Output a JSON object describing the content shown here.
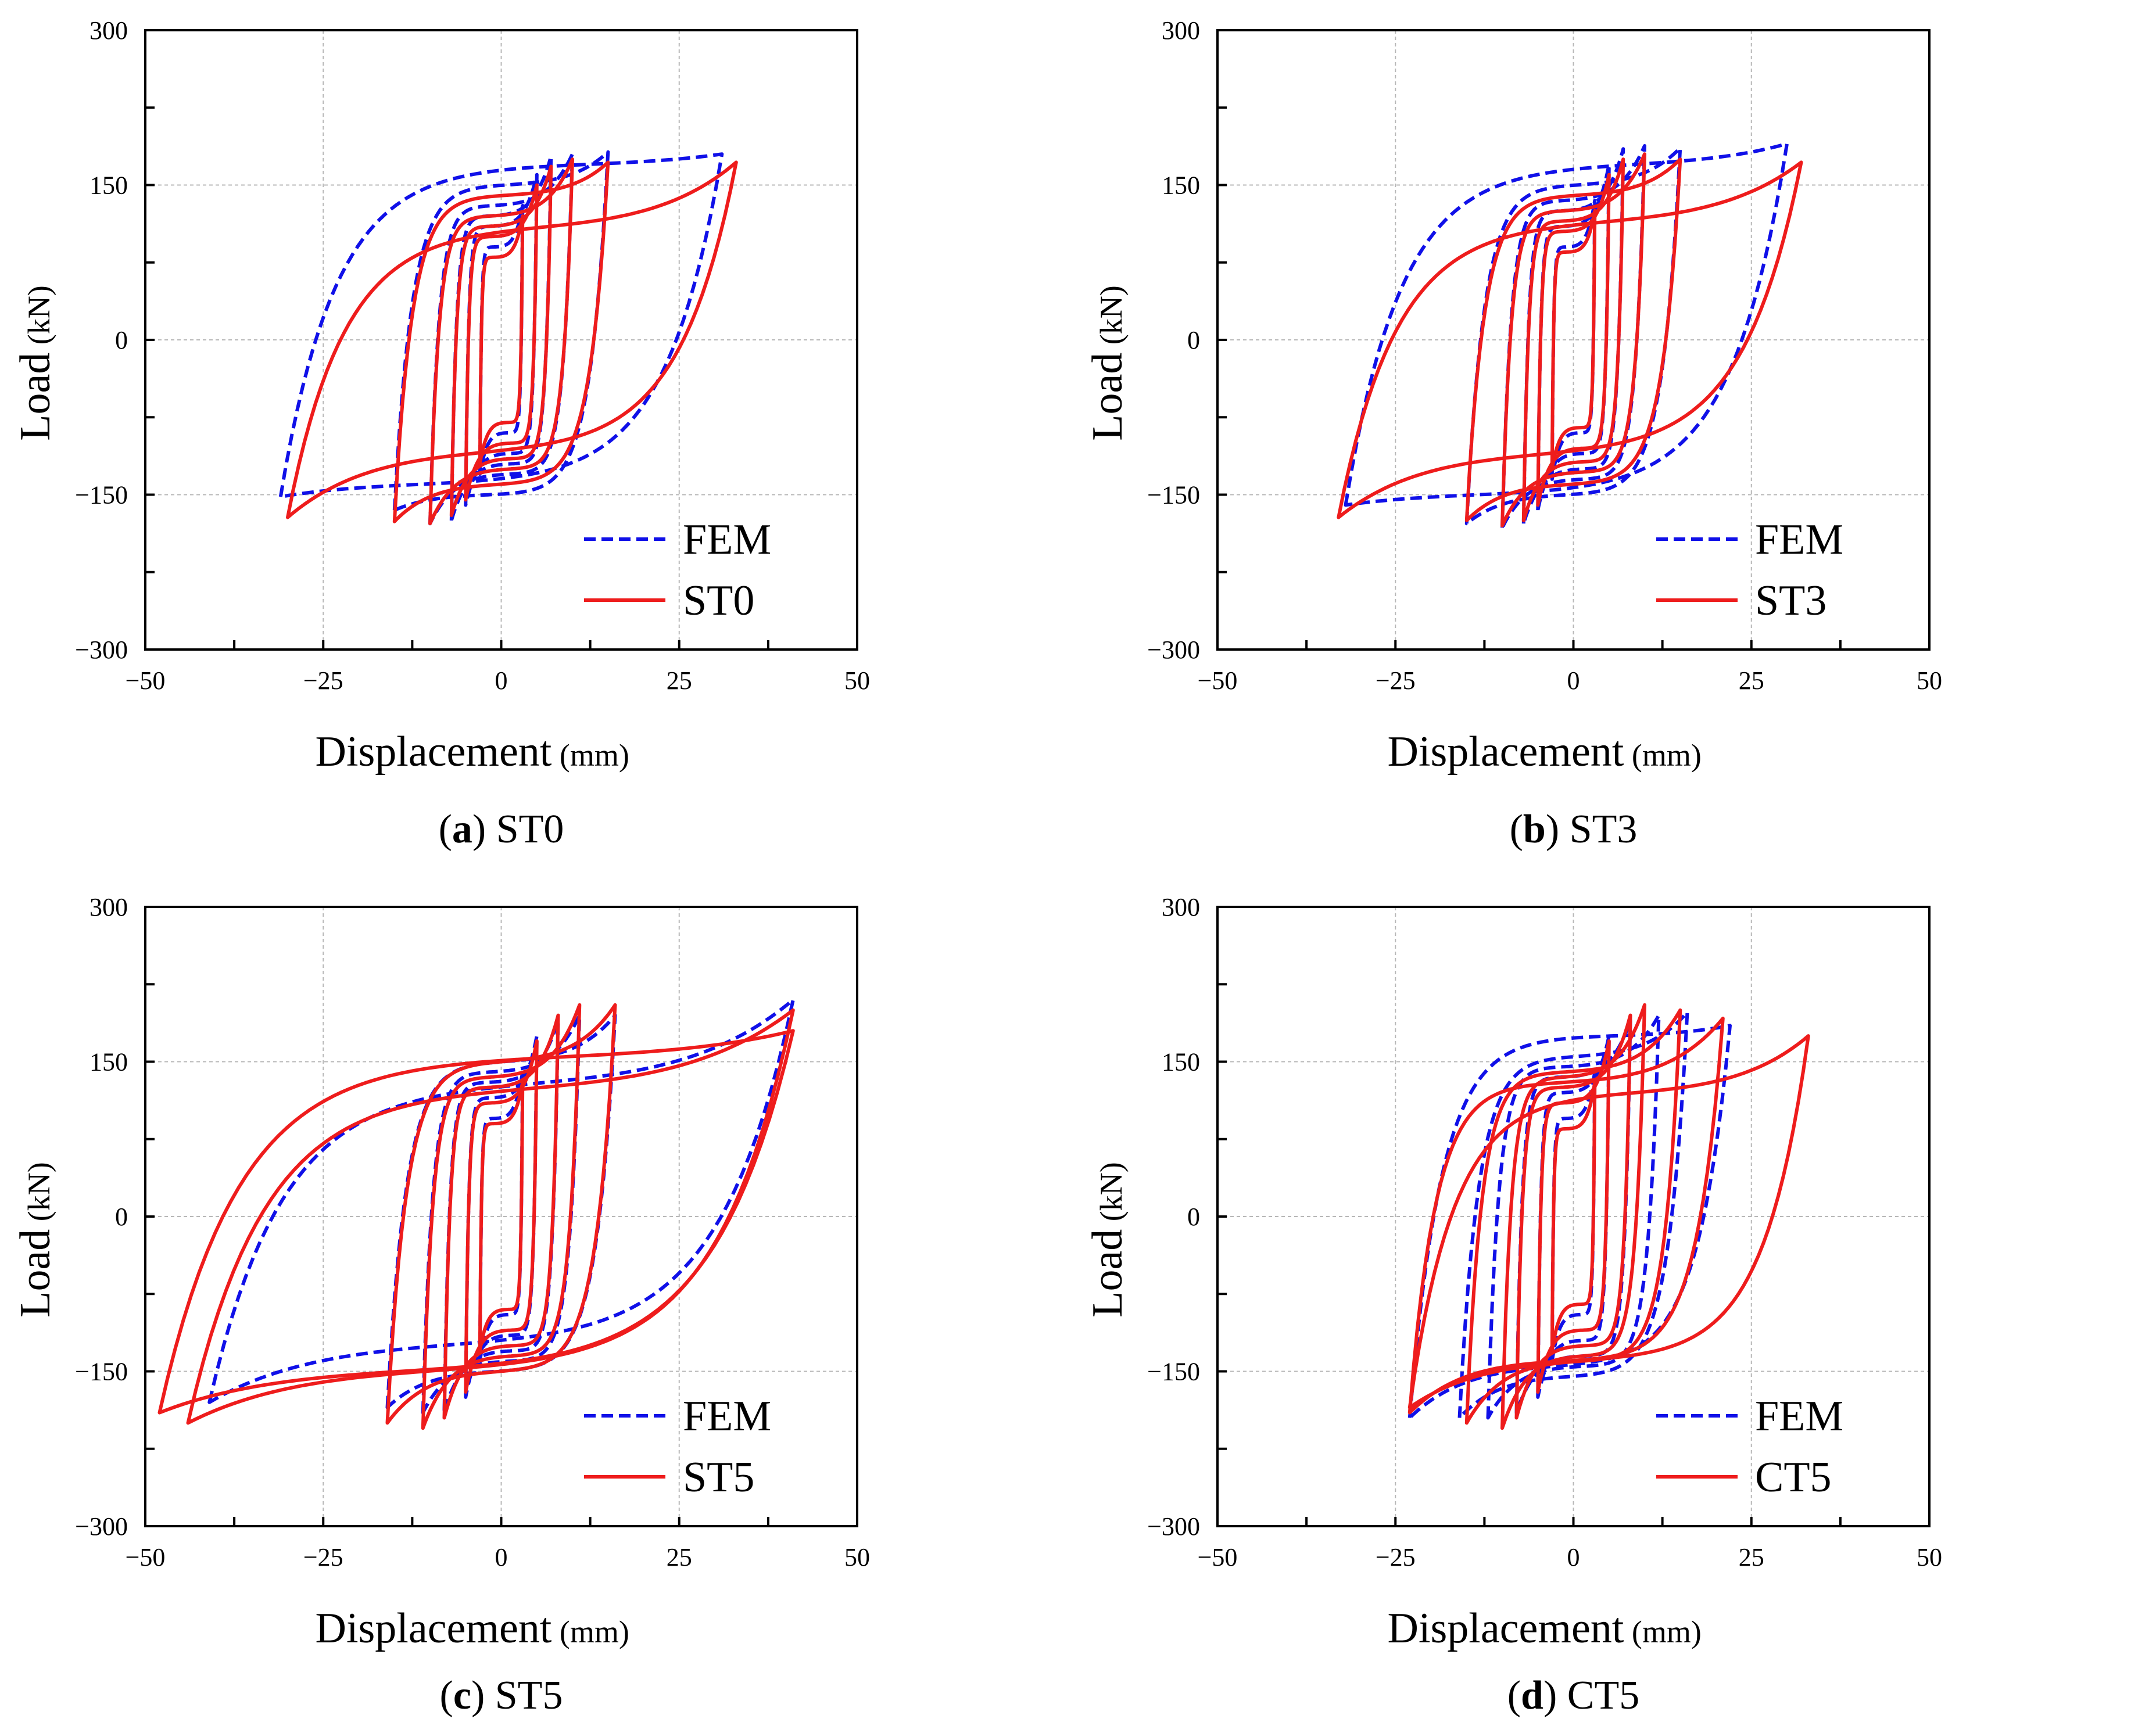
{
  "colors": {
    "fem": "#1010e8",
    "test": "#ee1c1c",
    "grid": "#b8b8b8",
    "axis": "#000000"
  },
  "chart_data": [
    {
      "type": "line",
      "caption": {
        "open": "(",
        "letter": "a",
        "close": ")",
        "text": " ST0"
      },
      "xlabel": "Displacement",
      "xunit": " (mm)",
      "ylabel": "Load",
      "yunit": " (kN)",
      "xlim": [
        -50,
        50
      ],
      "ylim": [
        -300,
        300
      ],
      "xticks": [
        -50,
        -25,
        0,
        25,
        50
      ],
      "yticks": [
        -300,
        -150,
        0,
        150,
        300
      ],
      "xtick_labels": [
        "−50",
        "−25",
        "0",
        "25",
        "50"
      ],
      "ytick_labels": [
        "−300",
        "−150",
        "0",
        "150",
        "300"
      ],
      "grid": true,
      "legend_position": "lower-right",
      "series": [
        {
          "name": "FEM",
          "style": "dashed",
          "color_key": "fem",
          "cycles": [
            {
              "dmax": 3,
              "pmax": 130,
              "dmin": -3,
              "pmin": -130,
              "yp": 90,
              "yn": -90,
              "sp": 28,
              "sn": 28
            },
            {
              "dmax": 5,
              "pmax": 160,
              "dmin": -5,
              "pmin": -160,
              "yp": 110,
              "yn": -110,
              "sp": 24,
              "sn": 24
            },
            {
              "dmax": 7,
              "pmax": 178,
              "dmin": -7,
              "pmin": -175,
              "yp": 120,
              "yn": -120,
              "sp": 20,
              "sn": 20
            },
            {
              "dmax": 10,
              "pmax": 180,
              "dmin": -10,
              "pmin": -178,
              "yp": 130,
              "yn": -130,
              "sp": 16,
              "sn": 16
            },
            {
              "dmax": 15,
              "pmax": 182,
              "dmin": -15,
              "pmin": -165,
              "yp": 150,
              "yn": -150,
              "sp": 12,
              "sn": 12
            },
            {
              "dmax": 31,
              "pmax": 180,
              "dmin": -31,
              "pmin": -152,
              "yp": 170,
              "yn": -140,
              "sp": 8,
              "sn": 8
            }
          ]
        },
        {
          "name": "ST0",
          "style": "solid",
          "color_key": "test",
          "cycles": [
            {
              "dmax": 3,
              "pmax": 120,
              "dmin": -3,
              "pmin": -120,
              "yp": 80,
              "yn": -80,
              "sp": 28,
              "sn": 28
            },
            {
              "dmax": 5,
              "pmax": 150,
              "dmin": -5,
              "pmin": -155,
              "yp": 100,
              "yn": -100,
              "sp": 24,
              "sn": 24
            },
            {
              "dmax": 7,
              "pmax": 168,
              "dmin": -7,
              "pmin": -170,
              "yp": 110,
              "yn": -115,
              "sp": 20,
              "sn": 20
            },
            {
              "dmax": 10,
              "pmax": 175,
              "dmin": -10,
              "pmin": -178,
              "yp": 120,
              "yn": -125,
              "sp": 16,
              "sn": 16
            },
            {
              "dmax": 15,
              "pmax": 172,
              "dmin": -15,
              "pmin": -176,
              "yp": 140,
              "yn": -140,
              "sp": 12,
              "sn": 12
            },
            {
              "dmax": 33,
              "pmax": 172,
              "dmin": -30,
              "pmin": -172,
              "yp": 110,
              "yn": -110,
              "sp": 8,
              "sn": 8
            }
          ]
        }
      ]
    },
    {
      "type": "line",
      "caption": {
        "open": "(",
        "letter": "b",
        "close": ")",
        "text": " ST3"
      },
      "xlabel": "Displacement",
      "xunit": " (mm)",
      "ylabel": "Load",
      "yunit": " (kN)",
      "xlim": [
        -50,
        50
      ],
      "ylim": [
        -300,
        300
      ],
      "xticks": [
        -50,
        -25,
        0,
        25,
        50
      ],
      "yticks": [
        -300,
        -150,
        0,
        150,
        300
      ],
      "xtick_labels": [
        "−50",
        "−25",
        "0",
        "25",
        "50"
      ],
      "ytick_labels": [
        "−300",
        "−150",
        "0",
        "150",
        "300"
      ],
      "grid": true,
      "legend_position": "lower-right",
      "series": [
        {
          "name": "FEM",
          "style": "dashed",
          "color_key": "fem",
          "cycles": [
            {
              "dmax": 3,
              "pmax": 135,
              "dmin": -3,
              "pmin": -135,
              "yp": 90,
              "yn": -90,
              "sp": 28,
              "sn": 28
            },
            {
              "dmax": 5,
              "pmax": 170,
              "dmin": -5,
              "pmin": -165,
              "yp": 110,
              "yn": -110,
              "sp": 24,
              "sn": 24
            },
            {
              "dmax": 7,
              "pmax": 185,
              "dmin": -7,
              "pmin": -178,
              "yp": 125,
              "yn": -125,
              "sp": 20,
              "sn": 20
            },
            {
              "dmax": 10,
              "pmax": 188,
              "dmin": -10,
              "pmin": -182,
              "yp": 135,
              "yn": -135,
              "sp": 16,
              "sn": 16
            },
            {
              "dmax": 15,
              "pmax": 186,
              "dmin": -15,
              "pmin": -178,
              "yp": 150,
              "yn": -150,
              "sp": 12,
              "sn": 12
            },
            {
              "dmax": 30,
              "pmax": 190,
              "dmin": -32,
              "pmin": -160,
              "yp": 170,
              "yn": -150,
              "sp": 8,
              "sn": 8
            }
          ]
        },
        {
          "name": "ST3",
          "style": "solid",
          "color_key": "test",
          "cycles": [
            {
              "dmax": 3,
              "pmax": 125,
              "dmin": -3,
              "pmin": -125,
              "yp": 85,
              "yn": -85,
              "sp": 28,
              "sn": 28
            },
            {
              "dmax": 5,
              "pmax": 160,
              "dmin": -5,
              "pmin": -160,
              "yp": 105,
              "yn": -105,
              "sp": 24,
              "sn": 24
            },
            {
              "dmax": 7,
              "pmax": 175,
              "dmin": -7,
              "pmin": -175,
              "yp": 115,
              "yn": -118,
              "sp": 20,
              "sn": 20
            },
            {
              "dmax": 10,
              "pmax": 180,
              "dmin": -10,
              "pmin": -180,
              "yp": 125,
              "yn": -128,
              "sp": 16,
              "sn": 16
            },
            {
              "dmax": 15,
              "pmax": 175,
              "dmin": -15,
              "pmin": -175,
              "yp": 140,
              "yn": -140,
              "sp": 12,
              "sn": 12
            },
            {
              "dmax": 32,
              "pmax": 172,
              "dmin": -33,
              "pmin": -172,
              "yp": 115,
              "yn": -112,
              "sp": 8,
              "sn": 8
            }
          ]
        }
      ]
    },
    {
      "type": "line",
      "caption": {
        "open": "(",
        "letter": "c",
        "close": ")",
        "text": " ST5"
      },
      "xlabel": "Displacement",
      "xunit": " (mm)",
      "ylabel": "Load",
      "yunit": " (kN)",
      "xlim": [
        -50,
        50
      ],
      "ylim": [
        -300,
        300
      ],
      "xticks": [
        -50,
        -25,
        0,
        25,
        50
      ],
      "yticks": [
        -300,
        -150,
        0,
        150,
        300
      ],
      "xtick_labels": [
        "−50",
        "−25",
        "0",
        "25",
        "50"
      ],
      "ytick_labels": [
        "−300",
        "−150",
        "0",
        "150",
        "300"
      ],
      "grid": true,
      "legend_position": "lower-right",
      "series": [
        {
          "name": "FEM",
          "style": "dashed",
          "color_key": "fem",
          "cycles": [
            {
              "dmax": 3,
              "pmax": 140,
              "dmin": -3,
              "pmin": -140,
              "yp": 95,
              "yn": -95,
              "sp": 28,
              "sn": 28
            },
            {
              "dmax": 5,
              "pmax": 175,
              "dmin": -5,
              "pmin": -175,
              "yp": 115,
              "yn": -115,
              "sp": 24,
              "sn": 24
            },
            {
              "dmax": 8,
              "pmax": 190,
              "dmin": -8,
              "pmin": -188,
              "yp": 130,
              "yn": -130,
              "sp": 20,
              "sn": 20
            },
            {
              "dmax": 11,
              "pmax": 195,
              "dmin": -11,
              "pmin": -190,
              "yp": 140,
              "yn": -140,
              "sp": 16,
              "sn": 16
            },
            {
              "dmax": 16,
              "pmax": 195,
              "dmin": -16,
              "pmin": -185,
              "yp": 150,
              "yn": -150,
              "sp": 12,
              "sn": 12
            },
            {
              "dmax": 41,
              "pmax": 210,
              "dmin": -41,
              "pmin": -180,
              "yp": 130,
              "yn": -125,
              "sp": 8,
              "sn": 8
            }
          ]
        },
        {
          "name": "ST5",
          "style": "solid",
          "color_key": "test",
          "cycles": [
            {
              "dmax": 3,
              "pmax": 130,
              "dmin": -3,
              "pmin": -130,
              "yp": 90,
              "yn": -90,
              "sp": 28,
              "sn": 28
            },
            {
              "dmax": 5,
              "pmax": 170,
              "dmin": -5,
              "pmin": -170,
              "yp": 110,
              "yn": -110,
              "sp": 24,
              "sn": 24
            },
            {
              "dmax": 8,
              "pmax": 195,
              "dmin": -8,
              "pmin": -195,
              "yp": 125,
              "yn": -125,
              "sp": 20,
              "sn": 20
            },
            {
              "dmax": 11,
              "pmax": 205,
              "dmin": -11,
              "pmin": -205,
              "yp": 135,
              "yn": -135,
              "sp": 16,
              "sn": 16
            },
            {
              "dmax": 16,
              "pmax": 205,
              "dmin": -16,
              "pmin": -200,
              "yp": 150,
              "yn": -150,
              "sp": 12,
              "sn": 12
            },
            {
              "dmax": 41,
              "pmax": 200,
              "dmin": -44,
              "pmin": -200,
              "yp": 125,
              "yn": -150,
              "sp": 8,
              "sn": 8
            },
            {
              "dmax": 41,
              "pmax": 180,
              "dmin": -48,
              "pmin": -190,
              "yp": 155,
              "yn": -150,
              "sp": 8,
              "sn": 8
            }
          ]
        }
      ]
    },
    {
      "type": "line",
      "caption": {
        "open": "(",
        "letter": "d",
        "close": ")",
        "text": " CT5"
      },
      "xlabel": "Displacement",
      "xunit": " (mm)",
      "ylabel": "Load",
      "yunit": " (kN)",
      "xlim": [
        -50,
        50
      ],
      "ylim": [
        -300,
        300
      ],
      "xticks": [
        -50,
        -25,
        0,
        25,
        50
      ],
      "yticks": [
        -300,
        -150,
        0,
        150,
        300
      ],
      "xtick_labels": [
        "−50",
        "−25",
        "0",
        "25",
        "50"
      ],
      "ytick_labels": [
        "−300",
        "−150",
        "0",
        "150",
        "300"
      ],
      "grid": true,
      "legend_position": "lower-right",
      "series": [
        {
          "name": "FEM",
          "style": "dashed",
          "color_key": "fem",
          "cycles": [
            {
              "dmax": 3,
              "pmax": 140,
              "dmin": -3,
              "pmin": -140,
              "yp": 95,
              "yn": -95,
              "sp": 28,
              "sn": 28
            },
            {
              "dmax": 5,
              "pmax": 175,
              "dmin": -5,
              "pmin": -175,
              "yp": 120,
              "yn": -120,
              "sp": 24,
              "sn": 24
            },
            {
              "dmax": 8,
              "pmax": 190,
              "dmin": -8,
              "pmin": -190,
              "yp": 135,
              "yn": -135,
              "sp": 20,
              "sn": 20
            },
            {
              "dmax": 12,
              "pmax": 195,
              "dmin": -12,
              "pmin": -195,
              "yp": 145,
              "yn": -145,
              "sp": 16,
              "sn": 16
            },
            {
              "dmax": 16,
              "pmax": 198,
              "dmin": -16,
              "pmin": -195,
              "yp": 155,
              "yn": -155,
              "sp": 12,
              "sn": 12
            },
            {
              "dmax": 22,
              "pmax": 185,
              "dmin": -23,
              "pmin": -195,
              "yp": 175,
              "yn": -145,
              "sp": 10,
              "sn": 10
            }
          ]
        },
        {
          "name": "CT5",
          "style": "solid",
          "color_key": "test",
          "cycles": [
            {
              "dmax": 3,
              "pmax": 130,
              "dmin": -3,
              "pmin": -130,
              "yp": 85,
              "yn": -85,
              "sp": 28,
              "sn": 28
            },
            {
              "dmax": 5,
              "pmax": 170,
              "dmin": -5,
              "pmin": -170,
              "yp": 110,
              "yn": -110,
              "sp": 24,
              "sn": 24
            },
            {
              "dmax": 8,
              "pmax": 195,
              "dmin": -8,
              "pmin": -195,
              "yp": 125,
              "yn": -125,
              "sp": 20,
              "sn": 20
            },
            {
              "dmax": 10,
              "pmax": 205,
              "dmin": -10,
              "pmin": -205,
              "yp": 135,
              "yn": -135,
              "sp": 16,
              "sn": 16
            },
            {
              "dmax": 15,
              "pmax": 200,
              "dmin": -15,
              "pmin": -200,
              "yp": 140,
              "yn": -140,
              "sp": 14,
              "sn": 14
            },
            {
              "dmax": 21,
              "pmax": 192,
              "dmin": -23,
              "pmin": -190,
              "yp": 130,
              "yn": -140,
              "sp": 12,
              "sn": 12
            },
            {
              "dmax": 33,
              "pmax": 175,
              "dmin": -23,
              "pmin": -185,
              "yp": 120,
              "yn": -140,
              "sp": 9,
              "sn": 9
            }
          ]
        }
      ]
    }
  ]
}
